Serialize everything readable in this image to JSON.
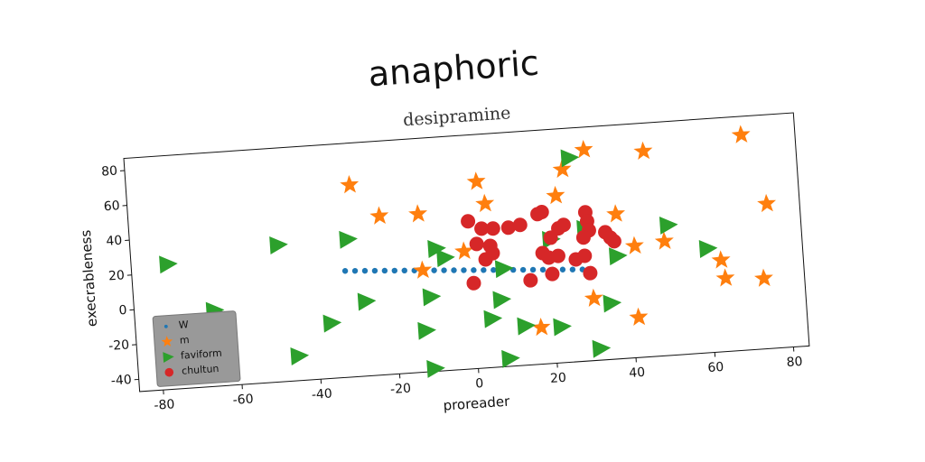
{
  "chart_data": {
    "type": "scatter",
    "title": "anaphoric",
    "subtitle": "desipramine",
    "x_label": "proreader",
    "y_label": "execrableness",
    "xlim": [
      -86,
      84
    ],
    "ylim": [
      -47,
      87
    ],
    "xticks": [
      -80,
      -60,
      -40,
      -20,
      0,
      20,
      40,
      60,
      80
    ],
    "yticks": [
      -40,
      -20,
      0,
      20,
      40,
      60,
      80
    ],
    "grid": false,
    "legend": "lower left",
    "series": [
      {
        "name": "W",
        "color": "#1f77b4",
        "marker": "small-circle",
        "x": [
          -32,
          -29.5,
          -27,
          -24.5,
          -22,
          -19.5,
          -17,
          -14.5,
          -12,
          -9.5,
          -7,
          -4.5,
          -2,
          0.5,
          3,
          5.5,
          8,
          10.5,
          13,
          15.5,
          18,
          20.5,
          23,
          25.5,
          28
        ],
        "values": [
          14,
          13.65,
          13.3,
          12.95,
          12.6,
          12.25,
          11.9,
          11.55,
          11.2,
          10.85,
          10.5,
          10.15,
          9.8,
          9.45,
          9.1,
          8.75,
          8.4,
          8.05,
          7.7,
          7.35,
          7,
          6.65,
          6.3,
          5.95,
          5.6
        ]
      },
      {
        "name": "m",
        "color": "#ff7f0e",
        "marker": "star",
        "x": [
          -29.4,
          -22.4,
          -12.6,
          2.7,
          4.5,
          22.5,
          30.4,
          24.6,
          45.4,
          70.4,
          75.7,
          37.4,
          -1.6,
          -12.4,
          49.2,
          41.6,
          63.2,
          64,
          73.7,
          30.4,
          16.6,
          41.4
        ],
        "values": [
          63,
          44,
          43.7,
          60,
          47,
          48.8,
          74,
          63.6,
          70.8,
          76.4,
          36,
          36,
          20.6,
          11.3,
          18.5,
          17,
          5.5,
          -5,
          -6.6,
          -11.4,
          -26,
          -24
        ]
      },
      {
        "name": "faviform",
        "color": "#2ca02c",
        "marker": "triangle-right",
        "x": [
          -76.7,
          -48.5,
          -30.8,
          -65.7,
          -27.2,
          -36.3,
          -45.1,
          -8.6,
          -6.5,
          -10.7,
          -12.5,
          -10.9,
          8.1,
          7,
          4.4,
          8.2,
          12.7,
          21.8,
          31.3,
          34.8,
          37.1,
          26.6,
          50.4,
          60,
          20.5,
          29.4
        ],
        "values": [
          24.8,
          31.5,
          32,
          -3.5,
          -4.2,
          -15.3,
          -32.8,
          23.3,
          17.7,
          -4.1,
          -23.2,
          -45.3,
          9.2,
          -8.4,
          -19,
          -42.5,
          -24.4,
          -26.3,
          -40.3,
          -14.8,
          12,
          70,
          27.7,
          12.7,
          24,
          28.9
        ]
      },
      {
        "name": "chultun",
        "color": "#d62728",
        "marker": "circle",
        "x": [
          -0.1,
          3.2,
          6.1,
          10,
          13,
          17.6,
          18.7,
          22.6,
          24,
          29.7,
          30,
          30.3,
          28.8,
          34.4,
          35.6,
          36.5,
          1.7,
          5.1,
          3.7,
          5.6,
          18.2,
          19.7,
          22.1,
          26.5,
          28.8,
          29.9,
          20.3,
          14.7,
          0.3,
          20.5
        ],
        "values": [
          37.6,
          32.9,
          32.5,
          32.4,
          33.5,
          39,
          40,
          30,
          31.8,
          38.2,
          33,
          27.7,
          23.8,
          26,
          22.7,
          20.5,
          24.3,
          22.7,
          15.1,
          18.4,
          16.5,
          13.7,
          14.3,
          11.6,
          13.3,
          3.2,
          4.2,
          1.4,
          2,
          25
        ]
      }
    ]
  }
}
